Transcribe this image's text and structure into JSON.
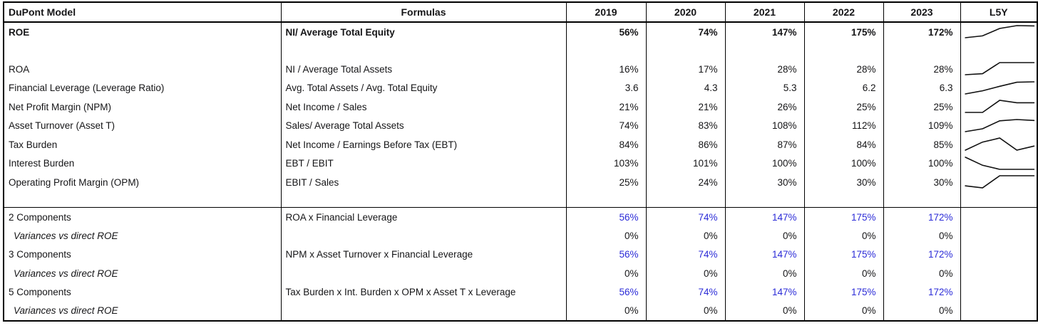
{
  "colors": {
    "text": "#151517",
    "accent_blue": "#2b2bd7",
    "border": "#000000",
    "background": "#ffffff",
    "sparkline": "#111111"
  },
  "header": {
    "dupont_model": "DuPont Model",
    "formulas": "Formulas",
    "years": [
      "2019",
      "2020",
      "2021",
      "2022",
      "2023"
    ],
    "l5y": "L5Y"
  },
  "metrics": [
    {
      "label": "ROE",
      "formula": "NI/ Average Total Equity",
      "values": [
        "56%",
        "74%",
        "147%",
        "175%",
        "172%"
      ],
      "spark": [
        56,
        74,
        147,
        175,
        172
      ],
      "bold": true,
      "spacer_after": true
    },
    {
      "label": "ROA",
      "formula": "NI / Average Total Assets",
      "values": [
        "16%",
        "17%",
        "28%",
        "28%",
        "28%"
      ],
      "spark": [
        16,
        17,
        28,
        28,
        28
      ]
    },
    {
      "label": "Financial Leverage (Leverage Ratio)",
      "formula": "Avg. Total Assets / Avg. Total Equity",
      "values": [
        "3.6",
        "4.3",
        "5.3",
        "6.2",
        "6.3"
      ],
      "spark": [
        3.6,
        4.3,
        5.3,
        6.2,
        6.3
      ]
    },
    {
      "label": "Net Profit Margin (NPM)",
      "formula": "Net Income / Sales",
      "values": [
        "21%",
        "21%",
        "26%",
        "25%",
        "25%"
      ],
      "spark": [
        21,
        21,
        26,
        25,
        25
      ]
    },
    {
      "label": "Asset Turnover (Asset T)",
      "formula": "Sales/ Average Total Assets",
      "values": [
        "74%",
        "83%",
        "108%",
        "112%",
        "109%"
      ],
      "spark": [
        74,
        83,
        108,
        112,
        109
      ]
    },
    {
      "label": "Tax Burden",
      "formula": "Net Income / Earnings Before Tax (EBT)",
      "values": [
        "84%",
        "86%",
        "87%",
        "84%",
        "85%"
      ],
      "spark": [
        84,
        86,
        87,
        84,
        85
      ]
    },
    {
      "label": "Interest Burden",
      "formula": "EBT / EBIT",
      "values": [
        "103%",
        "101%",
        "100%",
        "100%",
        "100%"
      ],
      "spark": [
        103,
        101,
        100,
        100,
        100
      ]
    },
    {
      "label": "Operating Profit Margin (OPM)",
      "formula": "EBIT / Sales",
      "values": [
        "25%",
        "24%",
        "30%",
        "30%",
        "30%"
      ],
      "spark": [
        25,
        24,
        30,
        30,
        30
      ]
    }
  ],
  "components": [
    {
      "label": "2 Components",
      "formula": "ROA x Financial Leverage",
      "values": [
        "56%",
        "74%",
        "147%",
        "175%",
        "172%"
      ],
      "highlight": true
    },
    {
      "label": "Variances vs direct ROE",
      "formula": "",
      "values": [
        "0%",
        "0%",
        "0%",
        "0%",
        "0%"
      ],
      "italic": true
    },
    {
      "label": "3 Components",
      "formula": "NPM x Asset Turnover x Financial Leverage",
      "values": [
        "56%",
        "74%",
        "147%",
        "175%",
        "172%"
      ],
      "highlight": true
    },
    {
      "label": "Variances vs direct ROE",
      "formula": "",
      "values": [
        "0%",
        "0%",
        "0%",
        "0%",
        "0%"
      ],
      "italic": true
    },
    {
      "label": "5 Components",
      "formula": "Tax Burden x Int. Burden x OPM x Asset T x Leverage",
      "values": [
        "56%",
        "74%",
        "147%",
        "175%",
        "172%"
      ],
      "highlight": true
    },
    {
      "label": "Variances vs direct ROE",
      "formula": "",
      "values": [
        "0%",
        "0%",
        "0%",
        "0%",
        "0%"
      ],
      "italic": true
    }
  ]
}
